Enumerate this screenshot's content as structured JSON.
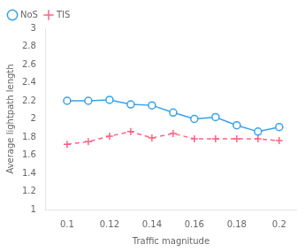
{
  "chart_data": {
    "type": "line",
    "xlabel": "Traffic magnitude",
    "ylabel": "Average lightpath length",
    "x": [
      0.1,
      0.11,
      0.12,
      0.13,
      0.14,
      0.15,
      0.16,
      0.17,
      0.18,
      0.19,
      0.2
    ],
    "series": [
      {
        "name": "NoS",
        "values": [
          2.2,
          2.2,
          2.21,
          2.16,
          2.15,
          2.07,
          2.0,
          2.02,
          1.93,
          1.86,
          1.91
        ],
        "marker": "circle",
        "line_style": "solid"
      },
      {
        "name": "TIS",
        "values": [
          1.72,
          1.75,
          1.81,
          1.86,
          1.79,
          1.84,
          1.78,
          1.78,
          1.78,
          1.78,
          1.76
        ],
        "marker": "plus",
        "line_style": "dashed"
      }
    ],
    "xlim": [
      0.09,
      0.208
    ],
    "ylim": [
      1,
      3
    ],
    "xticks": [
      0.1,
      0.12,
      0.14,
      0.16,
      0.18,
      0.2
    ],
    "yticks": [
      1,
      1.2,
      1.4,
      1.6,
      1.8,
      2,
      2.2,
      2.4,
      2.6,
      2.8,
      3
    ],
    "legend": "upper left",
    "grid": false
  }
}
